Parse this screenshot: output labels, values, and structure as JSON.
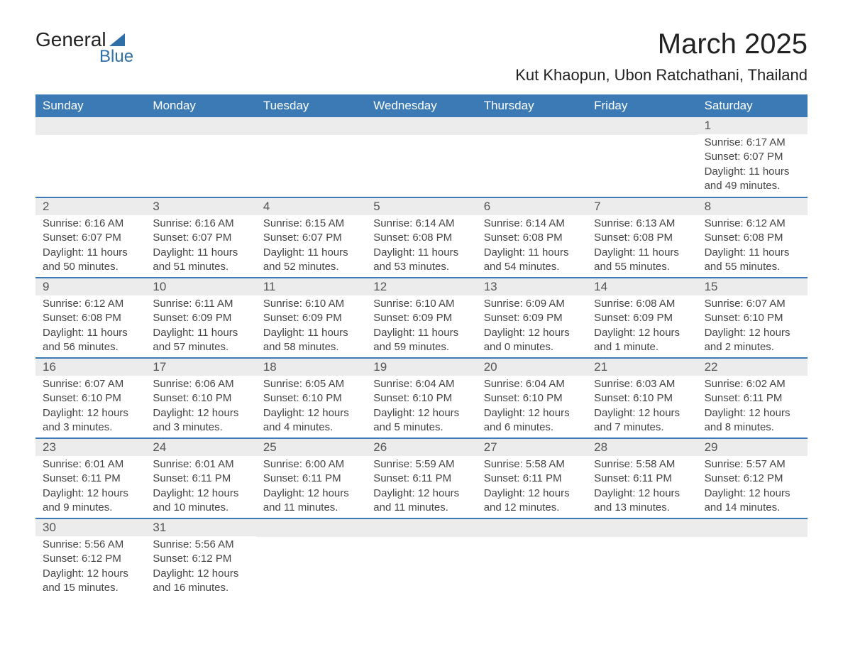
{
  "logo": {
    "line1": "General",
    "line2": "Blue"
  },
  "title": "March 2025",
  "location": "Kut Khaopun, Ubon Ratchathani, Thailand",
  "colors": {
    "header_bg": "#3b7ab5",
    "header_text": "#ffffff",
    "daynum_bg": "#ececec",
    "row_border": "#3b7ab5",
    "body_text": "#444444",
    "logo_accent": "#2f6fa8"
  },
  "typography": {
    "title_fontsize": 40,
    "location_fontsize": 22,
    "header_fontsize": 17,
    "daynum_fontsize": 17,
    "detail_fontsize": 15
  },
  "day_names": [
    "Sunday",
    "Monday",
    "Tuesday",
    "Wednesday",
    "Thursday",
    "Friday",
    "Saturday"
  ],
  "weeks": [
    [
      {},
      {},
      {},
      {},
      {},
      {},
      {
        "n": "1",
        "sunrise": "6:17 AM",
        "sunset": "6:07 PM",
        "daylight": "11 hours and 49 minutes."
      }
    ],
    [
      {
        "n": "2",
        "sunrise": "6:16 AM",
        "sunset": "6:07 PM",
        "daylight": "11 hours and 50 minutes."
      },
      {
        "n": "3",
        "sunrise": "6:16 AM",
        "sunset": "6:07 PM",
        "daylight": "11 hours and 51 minutes."
      },
      {
        "n": "4",
        "sunrise": "6:15 AM",
        "sunset": "6:07 PM",
        "daylight": "11 hours and 52 minutes."
      },
      {
        "n": "5",
        "sunrise": "6:14 AM",
        "sunset": "6:08 PM",
        "daylight": "11 hours and 53 minutes."
      },
      {
        "n": "6",
        "sunrise": "6:14 AM",
        "sunset": "6:08 PM",
        "daylight": "11 hours and 54 minutes."
      },
      {
        "n": "7",
        "sunrise": "6:13 AM",
        "sunset": "6:08 PM",
        "daylight": "11 hours and 55 minutes."
      },
      {
        "n": "8",
        "sunrise": "6:12 AM",
        "sunset": "6:08 PM",
        "daylight": "11 hours and 55 minutes."
      }
    ],
    [
      {
        "n": "9",
        "sunrise": "6:12 AM",
        "sunset": "6:08 PM",
        "daylight": "11 hours and 56 minutes."
      },
      {
        "n": "10",
        "sunrise": "6:11 AM",
        "sunset": "6:09 PM",
        "daylight": "11 hours and 57 minutes."
      },
      {
        "n": "11",
        "sunrise": "6:10 AM",
        "sunset": "6:09 PM",
        "daylight": "11 hours and 58 minutes."
      },
      {
        "n": "12",
        "sunrise": "6:10 AM",
        "sunset": "6:09 PM",
        "daylight": "11 hours and 59 minutes."
      },
      {
        "n": "13",
        "sunrise": "6:09 AM",
        "sunset": "6:09 PM",
        "daylight": "12 hours and 0 minutes."
      },
      {
        "n": "14",
        "sunrise": "6:08 AM",
        "sunset": "6:09 PM",
        "daylight": "12 hours and 1 minute."
      },
      {
        "n": "15",
        "sunrise": "6:07 AM",
        "sunset": "6:10 PM",
        "daylight": "12 hours and 2 minutes."
      }
    ],
    [
      {
        "n": "16",
        "sunrise": "6:07 AM",
        "sunset": "6:10 PM",
        "daylight": "12 hours and 3 minutes."
      },
      {
        "n": "17",
        "sunrise": "6:06 AM",
        "sunset": "6:10 PM",
        "daylight": "12 hours and 3 minutes."
      },
      {
        "n": "18",
        "sunrise": "6:05 AM",
        "sunset": "6:10 PM",
        "daylight": "12 hours and 4 minutes."
      },
      {
        "n": "19",
        "sunrise": "6:04 AM",
        "sunset": "6:10 PM",
        "daylight": "12 hours and 5 minutes."
      },
      {
        "n": "20",
        "sunrise": "6:04 AM",
        "sunset": "6:10 PM",
        "daylight": "12 hours and 6 minutes."
      },
      {
        "n": "21",
        "sunrise": "6:03 AM",
        "sunset": "6:10 PM",
        "daylight": "12 hours and 7 minutes."
      },
      {
        "n": "22",
        "sunrise": "6:02 AM",
        "sunset": "6:11 PM",
        "daylight": "12 hours and 8 minutes."
      }
    ],
    [
      {
        "n": "23",
        "sunrise": "6:01 AM",
        "sunset": "6:11 PM",
        "daylight": "12 hours and 9 minutes."
      },
      {
        "n": "24",
        "sunrise": "6:01 AM",
        "sunset": "6:11 PM",
        "daylight": "12 hours and 10 minutes."
      },
      {
        "n": "25",
        "sunrise": "6:00 AM",
        "sunset": "6:11 PM",
        "daylight": "12 hours and 11 minutes."
      },
      {
        "n": "26",
        "sunrise": "5:59 AM",
        "sunset": "6:11 PM",
        "daylight": "12 hours and 11 minutes."
      },
      {
        "n": "27",
        "sunrise": "5:58 AM",
        "sunset": "6:11 PM",
        "daylight": "12 hours and 12 minutes."
      },
      {
        "n": "28",
        "sunrise": "5:58 AM",
        "sunset": "6:11 PM",
        "daylight": "12 hours and 13 minutes."
      },
      {
        "n": "29",
        "sunrise": "5:57 AM",
        "sunset": "6:12 PM",
        "daylight": "12 hours and 14 minutes."
      }
    ],
    [
      {
        "n": "30",
        "sunrise": "5:56 AM",
        "sunset": "6:12 PM",
        "daylight": "12 hours and 15 minutes."
      },
      {
        "n": "31",
        "sunrise": "5:56 AM",
        "sunset": "6:12 PM",
        "daylight": "12 hours and 16 minutes."
      },
      {},
      {},
      {},
      {},
      {}
    ]
  ],
  "labels": {
    "sunrise": "Sunrise:",
    "sunset": "Sunset:",
    "daylight": "Daylight:"
  }
}
